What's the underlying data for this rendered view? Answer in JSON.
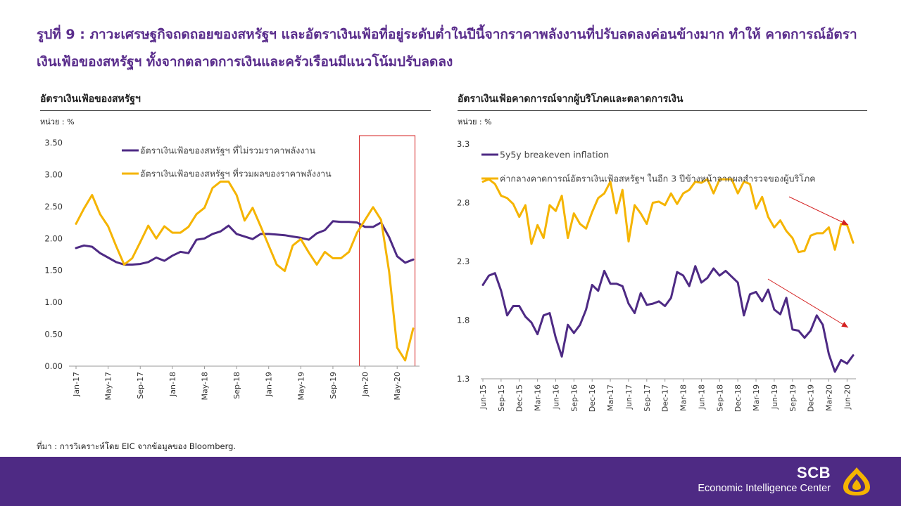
{
  "headline": "รูปที่ 9 : ภาวะเศรษฐกิจถดถอยของสหรัฐฯ และอัตราเงินเฟ้อที่อยู่ระดับต่ำในปีนี้จากราคาพลังงานที่ปรับลดลงค่อนข้างมาก ทำให้ คาดการณ์อัตราเงินเฟ้อของสหรัฐฯ ทั้งจากตลาดการเงินและครัวเรือนมีแนวโน้มปรับลดลง",
  "source": "ที่มา : การวิเคราะห์โดย EIC จากข้อมูลของ Bloomberg.",
  "footer": {
    "brand": "SCB",
    "subbrand": "Economic Intelligence Center"
  },
  "colors": {
    "purple": "#4e2a84",
    "orange": "#f5b400",
    "title": "#5a2d8c",
    "highlight": "#d42020",
    "arrow": "#d42020"
  },
  "chart_data": [
    {
      "type": "line",
      "title": "อัตราเงินเฟ้อของสหรัฐฯ",
      "unit_label": "หน่วย : %",
      "ylim": [
        0,
        3.5
      ],
      "yticks": [
        "3.50",
        "3.00",
        "2.50",
        "2.00",
        "1.50",
        "1.00",
        "0.50",
        "0.00"
      ],
      "x_tick_labels": [
        "Jan-17",
        "May-17",
        "Sep-17",
        "Jan-18",
        "May-18",
        "Sep-18",
        "Jan-19",
        "May-19",
        "Sep-19",
        "Jan-20",
        "May-20"
      ],
      "x_tick_index": [
        0,
        4,
        8,
        12,
        16,
        20,
        24,
        28,
        32,
        36,
        40
      ],
      "highlight_range": [
        36,
        41
      ],
      "legend_position": "top-left",
      "series": [
        {
          "name": "อัตราเงินเฟ้อของสหรัฐฯ ที่ไม่รวมราคาพลังงาน",
          "color": "#4e2a84",
          "values": [
            1.85,
            1.89,
            1.87,
            1.77,
            1.7,
            1.63,
            1.59,
            1.59,
            1.6,
            1.63,
            1.7,
            1.65,
            1.73,
            1.79,
            1.77,
            1.98,
            2.0,
            2.07,
            2.11,
            2.2,
            2.07,
            2.03,
            1.99,
            2.07,
            2.07,
            2.06,
            2.05,
            2.03,
            2.01,
            1.98,
            2.08,
            2.13,
            2.27,
            2.26,
            2.26,
            2.25,
            2.18,
            2.18,
            2.25,
            2.02,
            1.72,
            1.62,
            1.67
          ]
        },
        {
          "name": "อัตราเงินเฟ้อของสหรัฐฯ ที่รวมผลของราคาพลังงาน",
          "color": "#f5b400",
          "values": [
            2.23,
            2.47,
            2.68,
            2.38,
            2.19,
            1.88,
            1.59,
            1.69,
            1.94,
            2.2,
            2.0,
            2.19,
            2.09,
            2.09,
            2.18,
            2.38,
            2.48,
            2.79,
            2.89,
            2.89,
            2.68,
            2.28,
            2.48,
            2.19,
            1.89,
            1.59,
            1.49,
            1.89,
            1.99,
            1.78,
            1.59,
            1.79,
            1.69,
            1.69,
            1.79,
            2.09,
            2.29,
            2.49,
            2.29,
            1.48,
            0.29,
            0.09,
            0.59
          ]
        }
      ]
    },
    {
      "type": "line",
      "title": "อัตราเงินเฟ้อคาดการณ์จากผู้บริโภคและตลาดการเงิน",
      "unit_label": "หน่วย : %",
      "ylim": [
        1.3,
        3.45
      ],
      "yticks": [
        "3.3",
        "2.8",
        "2.3",
        "1.8",
        "1.3"
      ],
      "x_tick_labels": [
        "Jun-15",
        "Sep-15",
        "Dec-15",
        "Mar-16",
        "Jun-16",
        "Sep-16",
        "Dec-16",
        "Mar-17",
        "Jun-17",
        "Sep-17",
        "Dec-17",
        "Mar-18",
        "Jun-18",
        "Sep-18",
        "Dec-18",
        "Mar-19",
        "Jun-19",
        "Sep-19",
        "Dec-19",
        "Mar-20",
        "Jun-20"
      ],
      "x_tick_index": [
        0,
        3,
        6,
        9,
        12,
        15,
        18,
        21,
        24,
        27,
        30,
        33,
        36,
        39,
        42,
        45,
        48,
        51,
        54,
        57,
        60
      ],
      "legend_position": "top-left",
      "series": [
        {
          "name": "5y5y breakeven inflation",
          "color": "#4e2a84",
          "values": [
            2.1,
            2.18,
            2.2,
            2.05,
            1.84,
            1.92,
            1.92,
            1.83,
            1.78,
            1.68,
            1.84,
            1.86,
            1.65,
            1.49,
            1.76,
            1.69,
            1.76,
            1.89,
            2.1,
            2.05,
            2.22,
            2.11,
            2.11,
            2.09,
            1.94,
            1.86,
            2.03,
            1.93,
            1.94,
            1.96,
            1.92,
            1.99,
            2.21,
            2.18,
            2.09,
            2.26,
            2.12,
            2.16,
            2.24,
            2.18,
            2.22,
            2.17,
            2.12,
            1.84,
            2.02,
            2.04,
            1.96,
            2.06,
            1.89,
            1.85,
            1.99,
            1.72,
            1.71,
            1.65,
            1.71,
            1.84,
            1.76,
            1.51,
            1.36,
            1.46,
            1.43,
            1.5
          ]
        },
        {
          "name": "ค่ากลางคาดการณ์อัตราเงินเฟ้อสหรัฐฯ ในอีก 3 ปีข้างหน้าจากผลสำรวจของผู้บริโภค",
          "color": "#f5b400",
          "values": [
            2.98,
            3.0,
            2.96,
            2.86,
            2.84,
            2.79,
            2.68,
            2.78,
            2.45,
            2.61,
            2.5,
            2.78,
            2.73,
            2.86,
            2.5,
            2.71,
            2.62,
            2.58,
            2.72,
            2.84,
            2.88,
            2.98,
            2.71,
            2.91,
            2.47,
            2.78,
            2.71,
            2.62,
            2.8,
            2.81,
            2.78,
            2.88,
            2.79,
            2.88,
            2.91,
            2.98,
            2.97,
            3.0,
            2.88,
            3.0,
            3.0,
            3.0,
            2.88,
            2.98,
            2.96,
            2.75,
            2.85,
            2.68,
            2.59,
            2.65,
            2.56,
            2.5,
            2.38,
            2.39,
            2.52,
            2.54,
            2.54,
            2.59,
            2.4,
            2.62,
            2.61,
            2.46
          ]
        }
      ]
    }
  ]
}
